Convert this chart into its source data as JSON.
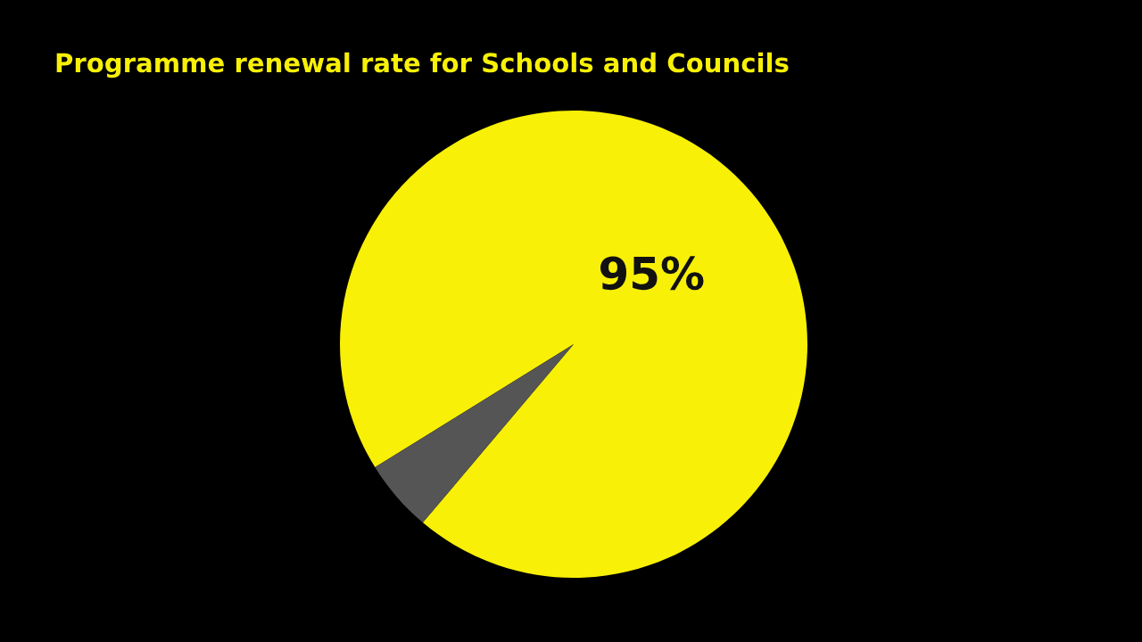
{
  "chart_data": {
    "type": "pie",
    "title": "Programme renewal rate for Schools and Councils",
    "categories": [
      null,
      null
    ],
    "values": [
      95,
      5
    ],
    "colors": [
      "#f8f006",
      "#555555"
    ],
    "value_labels": [
      "95%",
      null
    ]
  }
}
